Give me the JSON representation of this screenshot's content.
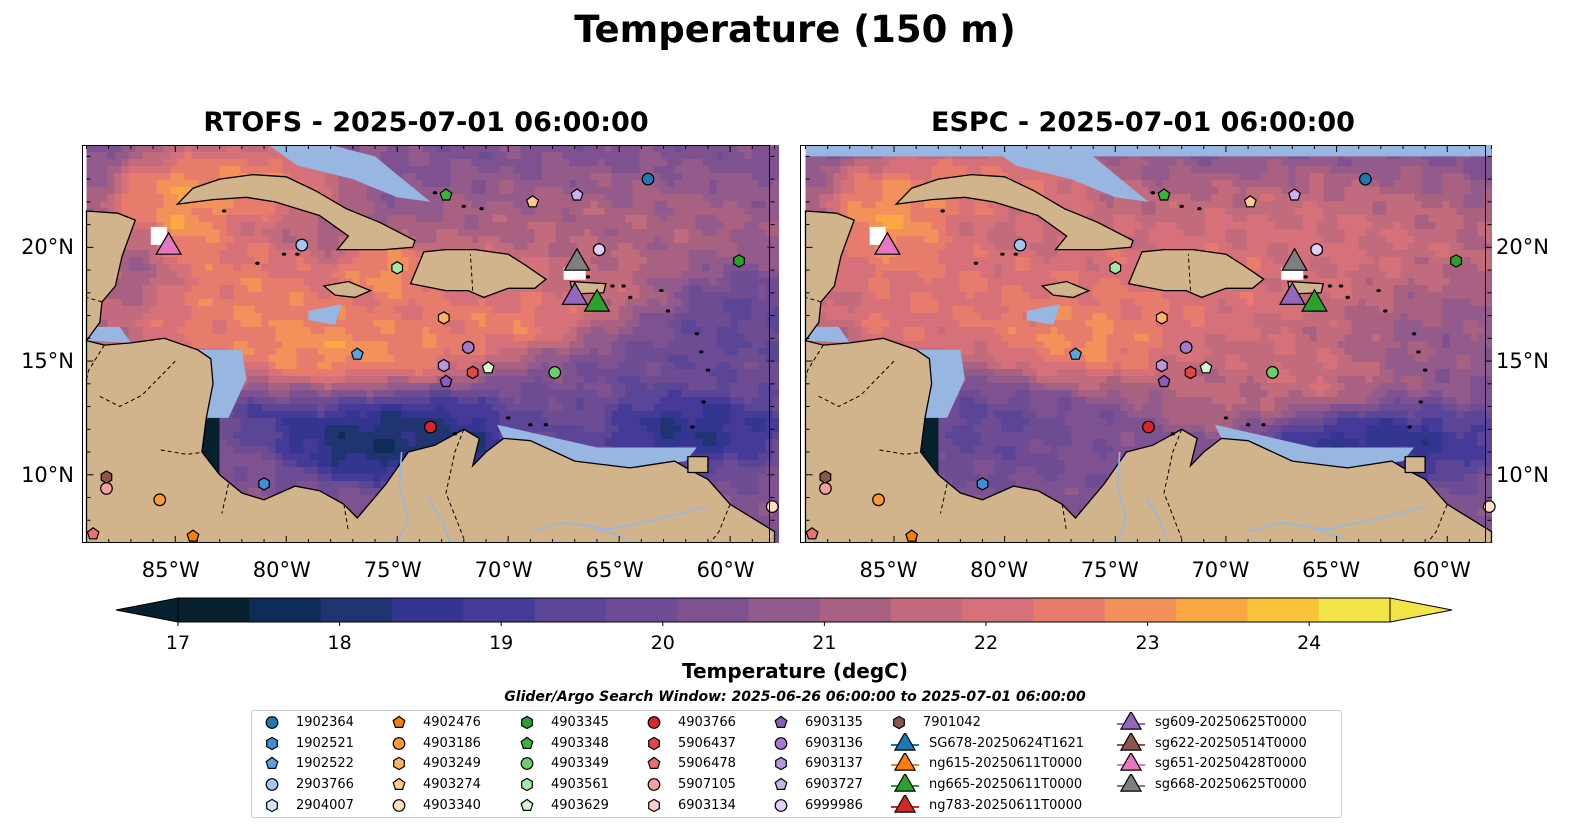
{
  "title": "Temperature (150 m)",
  "panels": [
    {
      "title": "RTOFS - 2025-07-01 06:00:00"
    },
    {
      "title": "ESPC - 2025-07-01 06:00:00"
    }
  ],
  "map_extent": {
    "lon": [
      -89,
      -58
    ],
    "lat": [
      7,
      24.5
    ]
  },
  "lon_ticks": [
    "85°W",
    "80°W",
    "75°W",
    "70°W",
    "65°W",
    "60°W"
  ],
  "lat_ticks": [
    "20°N",
    "15°N",
    "10°N"
  ],
  "colorbar": {
    "label": "Temperature (degC)",
    "ticks": [
      "17",
      "18",
      "19",
      "20",
      "21",
      "22",
      "23",
      "24"
    ],
    "range": [
      17,
      24.5
    ],
    "colors": [
      "#06202e",
      "#0e2c58",
      "#1f3470",
      "#343590",
      "#463a98",
      "#5b4597",
      "#6d4c93",
      "#7e5290",
      "#935a8c",
      "#a96182",
      "#c26b7c",
      "#d6717a",
      "#e77c6d",
      "#f3915a",
      "#f9a843",
      "#f9c43a",
      "#f3e549"
    ]
  },
  "legend": {
    "title": "Glider/Argo Search Window: 2025-06-26 06:00:00 to 2025-07-01 06:00:00",
    "columns": [
      [
        {
          "label": "1902364",
          "marker": "circle",
          "color": "#1f77b4"
        },
        {
          "label": "1902521",
          "marker": "hexagon",
          "color": "#3d8fd6"
        },
        {
          "label": "1902522",
          "marker": "pentagon",
          "color": "#5aa3e0"
        },
        {
          "label": "2903766",
          "marker": "circle",
          "color": "#9fc7f2"
        },
        {
          "label": "2904007",
          "marker": "hexagon",
          "color": "#d0e6fb"
        }
      ],
      [
        {
          "label": "4902476",
          "marker": "pentagon",
          "color": "#f57f0c"
        },
        {
          "label": "4903186",
          "marker": "circle",
          "color": "#fb9a3a"
        },
        {
          "label": "4903249",
          "marker": "hexagon",
          "color": "#fdb26a"
        },
        {
          "label": "4903274",
          "marker": "pentagon",
          "color": "#fdc894"
        },
        {
          "label": "4903340",
          "marker": "circle",
          "color": "#fde0c4"
        }
      ],
      [
        {
          "label": "4903345",
          "marker": "hexagon",
          "color": "#2ca02c"
        },
        {
          "label": "4903348",
          "marker": "pentagon",
          "color": "#3cb23c"
        },
        {
          "label": "4903349",
          "marker": "circle",
          "color": "#6cce6c"
        },
        {
          "label": "4903561",
          "marker": "hexagon",
          "color": "#a6e6a6"
        },
        {
          "label": "4903629",
          "marker": "pentagon",
          "color": "#d6f6d0"
        }
      ],
      [
        {
          "label": "4903766",
          "marker": "circle",
          "color": "#d62728"
        },
        {
          "label": "5906437",
          "marker": "hexagon",
          "color": "#e04848"
        },
        {
          "label": "5906478",
          "marker": "pentagon",
          "color": "#ec7070"
        },
        {
          "label": "5907105",
          "marker": "circle",
          "color": "#f5a0a0"
        },
        {
          "label": "6903134",
          "marker": "hexagon",
          "color": "#fbcfcf"
        }
      ],
      [
        {
          "label": "6903135",
          "marker": "pentagon",
          "color": "#8c5cb8"
        },
        {
          "label": "6903136",
          "marker": "circle",
          "color": "#a47acb"
        },
        {
          "label": "6903137",
          "marker": "hexagon",
          "color": "#b896dc"
        },
        {
          "label": "6903727",
          "marker": "pentagon",
          "color": "#ccb2ea"
        },
        {
          "label": "6999986",
          "marker": "circle",
          "color": "#e2cef6"
        }
      ],
      [
        {
          "label": "7901042",
          "marker": "hexagon",
          "color": "#8c564b"
        },
        {
          "label": "SG678-20250624T1621",
          "marker": "triangle",
          "color": "#1f77b4"
        },
        {
          "label": "ng615-20250611T0000",
          "marker": "triangle",
          "color": "#ff7f0e"
        },
        {
          "label": "ng665-20250611T0000",
          "marker": "triangle",
          "color": "#2ca02c"
        },
        {
          "label": "ng783-20250611T0000",
          "marker": "triangle",
          "color": "#d62728"
        }
      ],
      [
        {
          "label": "sg609-20250625T0000",
          "marker": "triangle",
          "color": "#9467bd"
        },
        {
          "label": "sg622-20250514T0000",
          "marker": "triangle",
          "color": "#8c564b"
        },
        {
          "label": "sg651-20250428T0000",
          "marker": "triangle",
          "color": "#e377c2"
        },
        {
          "label": "sg668-20250625T0000",
          "marker": "triangle",
          "color": "#7f7f7f"
        }
      ]
    ]
  },
  "floats": [
    {
      "label": "1902364",
      "lon": -63.7,
      "lat": 23.0
    },
    {
      "label": "1902521",
      "lon": -81.0,
      "lat": 9.6
    },
    {
      "label": "1902522",
      "lon": -76.8,
      "lat": 15.3
    },
    {
      "label": "2903766",
      "lon": -79.3,
      "lat": 20.1
    },
    {
      "label": "2904007",
      "lon": -65.9,
      "lat": 19.9
    },
    {
      "label": "4902476",
      "lon": -84.2,
      "lat": 7.3
    },
    {
      "label": "4903186",
      "lon": -85.7,
      "lat": 8.9
    },
    {
      "label": "4903249",
      "lon": -72.9,
      "lat": 16.9
    },
    {
      "label": "4903274",
      "lon": -68.9,
      "lat": 22.0
    },
    {
      "label": "4903340",
      "lon": -58.1,
      "lat": 8.6
    },
    {
      "label": "4903345",
      "lon": -59.6,
      "lat": 19.4
    },
    {
      "label": "4903348",
      "lon": -72.8,
      "lat": 22.3
    },
    {
      "label": "4903349",
      "lon": -67.9,
      "lat": 14.5
    },
    {
      "label": "4903561",
      "lon": -75.0,
      "lat": 19.1
    },
    {
      "label": "4903629",
      "lon": -70.9,
      "lat": 14.7
    },
    {
      "label": "4903766",
      "lon": -73.5,
      "lat": 12.1
    },
    {
      "label": "5906437",
      "lon": -71.6,
      "lat": 14.5
    },
    {
      "label": "5906478",
      "lon": -88.7,
      "lat": 7.4
    },
    {
      "label": "5907105",
      "lon": -88.1,
      "lat": 9.4
    },
    {
      "label": "6903134",
      "lon": -71.8,
      "lat": 15.6
    },
    {
      "label": "6903135",
      "lon": -72.8,
      "lat": 14.1
    },
    {
      "label": "6903136",
      "lon": -71.8,
      "lat": 15.6
    },
    {
      "label": "6903137",
      "lon": -72.9,
      "lat": 14.8
    },
    {
      "label": "6903727",
      "lon": -66.9,
      "lat": 22.3
    },
    {
      "label": "6999986",
      "lon": -65.9,
      "lat": 19.9
    },
    {
      "label": "7901042",
      "lon": -88.1,
      "lat": 9.9
    }
  ],
  "gliders": [
    {
      "label": "sg651-20250428T0000",
      "lon": -85.3,
      "lat": 20.0
    },
    {
      "label": "sg668-20250625T0000",
      "lon": -66.9,
      "lat": 19.3
    },
    {
      "label": "sg609-20250625T0000",
      "lon": -67.0,
      "lat": 17.8
    },
    {
      "label": "ng665-20250611T0000",
      "lon": -66.0,
      "lat": 17.5
    }
  ]
}
